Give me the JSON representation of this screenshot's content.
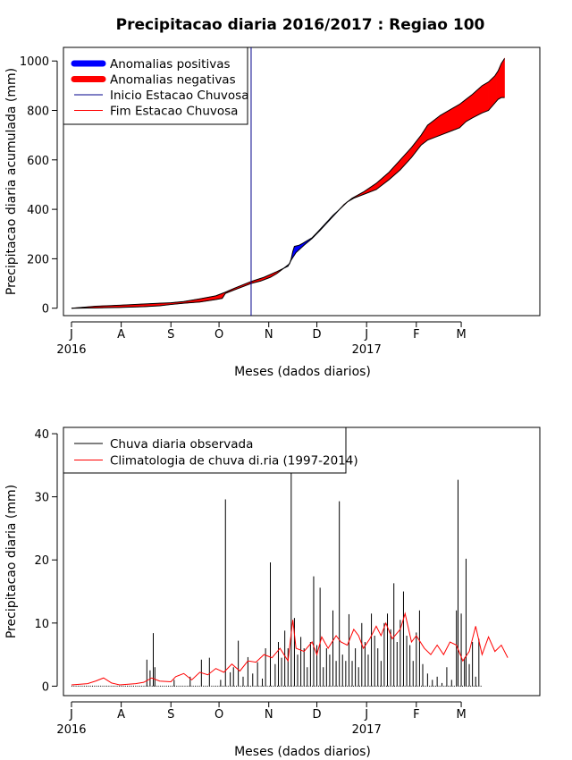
{
  "chart_data": [
    {
      "type": "area",
      "title": "Precipitacao diaria 2016/2017 : Regiao 100",
      "xlabel": "Meses (dados diarios)",
      "ylabel": "Precipitacao diaria acumulada (mm)",
      "x_unit": "days since 2016-07-01",
      "xlim": [
        -5,
        292
      ],
      "ylim": [
        -30,
        1055
      ],
      "y_ticks": [
        0,
        200,
        400,
        600,
        800,
        1000
      ],
      "x_ticks": [
        {
          "day": 0,
          "label": "J"
        },
        {
          "day": 31,
          "label": "A"
        },
        {
          "day": 62,
          "label": "S"
        },
        {
          "day": 92,
          "label": "O"
        },
        {
          "day": 123,
          "label": "N"
        },
        {
          "day": 153,
          "label": "D"
        },
        {
          "day": 184,
          "label": "J"
        },
        {
          "day": 215,
          "label": "F"
        },
        {
          "day": 243,
          "label": "M"
        }
      ],
      "year_labels": [
        {
          "day": 0,
          "label": "2016"
        },
        {
          "day": 184,
          "label": "2017"
        }
      ],
      "rainy_season_start_day": 112,
      "series": [
        {
          "name": "observed_cumulative",
          "points": [
            [
              0,
              0
            ],
            [
              15,
              1
            ],
            [
              30,
              3
            ],
            [
              45,
              6
            ],
            [
              55,
              10
            ],
            [
              62,
              15
            ],
            [
              70,
              20
            ],
            [
              80,
              25
            ],
            [
              90,
              35
            ],
            [
              94,
              40
            ],
            [
              96,
              60
            ],
            [
              102,
              75
            ],
            [
              112,
              100
            ],
            [
              118,
              110
            ],
            [
              124,
              125
            ],
            [
              128,
              140
            ],
            [
              132,
              160
            ],
            [
              136,
              180
            ],
            [
              137,
              200
            ],
            [
              138,
              230
            ],
            [
              139,
              250
            ],
            [
              142,
              255
            ],
            [
              144,
              262
            ],
            [
              150,
              285
            ],
            [
              153,
              305
            ],
            [
              158,
              340
            ],
            [
              163,
              375
            ],
            [
              168,
              405
            ],
            [
              172,
              430
            ],
            [
              176,
              445
            ],
            [
              182,
              460
            ],
            [
              190,
              480
            ],
            [
              198,
              520
            ],
            [
              205,
              560
            ],
            [
              212,
              610
            ],
            [
              218,
              660
            ],
            [
              222,
              680
            ],
            [
              230,
              700
            ],
            [
              238,
              720
            ],
            [
              242,
              730
            ],
            [
              246,
              755
            ],
            [
              250,
              770
            ],
            [
              256,
              790
            ],
            [
              260,
              800
            ],
            [
              264,
              830
            ],
            [
              266,
              845
            ],
            [
              268,
              852
            ],
            [
              270,
              852
            ]
          ]
        },
        {
          "name": "climatology_cumulative",
          "points": [
            [
              0,
              0
            ],
            [
              15,
              8
            ],
            [
              30,
              12
            ],
            [
              45,
              17
            ],
            [
              55,
              20
            ],
            [
              62,
              22
            ],
            [
              70,
              27
            ],
            [
              80,
              38
            ],
            [
              90,
              50
            ],
            [
              96,
              65
            ],
            [
              102,
              82
            ],
            [
              112,
              108
            ],
            [
              120,
              125
            ],
            [
              128,
              148
            ],
            [
              135,
              170
            ],
            [
              137,
              195
            ],
            [
              140,
              225
            ],
            [
              145,
              255
            ],
            [
              150,
              282
            ],
            [
              155,
              315
            ],
            [
              160,
              350
            ],
            [
              165,
              385
            ],
            [
              170,
              420
            ],
            [
              175,
              445
            ],
            [
              182,
              470
            ],
            [
              190,
              505
            ],
            [
              198,
              550
            ],
            [
              205,
              600
            ],
            [
              212,
              650
            ],
            [
              218,
              700
            ],
            [
              222,
              740
            ],
            [
              230,
              780
            ],
            [
              238,
              810
            ],
            [
              242,
              825
            ],
            [
              246,
              845
            ],
            [
              250,
              865
            ],
            [
              256,
              900
            ],
            [
              260,
              915
            ],
            [
              264,
              940
            ],
            [
              266,
              960
            ],
            [
              268,
              990
            ],
            [
              270,
              1010
            ]
          ]
        }
      ],
      "legend": {
        "position": "top-left",
        "items": [
          {
            "label": "Anomalias positivas",
            "color": "#0000ff",
            "style": "thick"
          },
          {
            "label": "Anomalias negativas",
            "color": "#ff0000",
            "style": "thick"
          },
          {
            "label": "Inicio Estacao Chuvosa",
            "color": "#00008b",
            "style": "line"
          },
          {
            "label": "Fim Estacao Chuvosa",
            "color": "#ff0000",
            "style": "line"
          }
        ]
      },
      "colors": {
        "positive": "#0000ff",
        "negative": "#ff0000",
        "season_start": "#00008b"
      }
    },
    {
      "type": "bar",
      "xlabel": "Meses (dados diarios)",
      "ylabel": "Precipitacao diaria (mm)",
      "x_unit": "days since 2016-07-01",
      "xlim": [
        -5,
        292
      ],
      "ylim": [
        -1.5,
        41
      ],
      "y_ticks": [
        0,
        10,
        20,
        30,
        40
      ],
      "x_ticks": [
        {
          "day": 0,
          "label": "J"
        },
        {
          "day": 31,
          "label": "A"
        },
        {
          "day": 62,
          "label": "S"
        },
        {
          "day": 92,
          "label": "O"
        },
        {
          "day": 123,
          "label": "N"
        },
        {
          "day": 153,
          "label": "D"
        },
        {
          "day": 184,
          "label": "J"
        },
        {
          "day": 215,
          "label": "F"
        },
        {
          "day": 243,
          "label": "M"
        }
      ],
      "year_labels": [
        {
          "day": 0,
          "label": "2016"
        },
        {
          "day": 184,
          "label": "2017"
        }
      ],
      "observed_bars": [
        [
          47,
          4.2
        ],
        [
          49,
          2.5
        ],
        [
          51,
          8.4
        ],
        [
          52,
          3.0
        ],
        [
          64,
          1.0
        ],
        [
          74,
          1.5
        ],
        [
          81,
          4.2
        ],
        [
          86,
          4.5
        ],
        [
          93,
          1.0
        ],
        [
          96,
          29.6
        ],
        [
          99,
          2.2
        ],
        [
          101,
          3.0
        ],
        [
          104,
          7.2
        ],
        [
          107,
          1.5
        ],
        [
          110,
          4.6
        ],
        [
          113,
          2.0
        ],
        [
          116,
          3.8
        ],
        [
          119,
          1.2
        ],
        [
          121,
          6.0
        ],
        [
          124,
          19.6
        ],
        [
          127,
          3.5
        ],
        [
          129,
          7.0
        ],
        [
          131,
          4.5
        ],
        [
          133,
          8.8
        ],
        [
          135,
          6.0
        ],
        [
          137,
          34.0
        ],
        [
          139,
          10.8
        ],
        [
          141,
          5.0
        ],
        [
          143,
          7.8
        ],
        [
          145,
          6.0
        ],
        [
          147,
          3.0
        ],
        [
          149,
          7.0
        ],
        [
          151,
          17.4
        ],
        [
          153,
          6.5
        ],
        [
          155,
          15.6
        ],
        [
          157,
          3.0
        ],
        [
          159,
          6.0
        ],
        [
          161,
          5.0
        ],
        [
          163,
          12.0
        ],
        [
          165,
          4.0
        ],
        [
          167,
          29.3
        ],
        [
          169,
          5.0
        ],
        [
          171,
          4.0
        ],
        [
          173,
          11.4
        ],
        [
          175,
          4.0
        ],
        [
          177,
          6.0
        ],
        [
          179,
          3.0
        ],
        [
          181,
          10.0
        ],
        [
          183,
          7.0
        ],
        [
          185,
          5.0
        ],
        [
          187,
          11.5
        ],
        [
          189,
          8.0
        ],
        [
          191,
          6.0
        ],
        [
          193,
          4.0
        ],
        [
          195,
          10.0
        ],
        [
          197,
          11.5
        ],
        [
          199,
          9.0
        ],
        [
          201,
          16.3
        ],
        [
          203,
          7.0
        ],
        [
          205,
          10.5
        ],
        [
          207,
          15.0
        ],
        [
          209,
          8.0
        ],
        [
          211,
          6.5
        ],
        [
          213,
          4.0
        ],
        [
          215,
          8.5
        ],
        [
          217,
          12.0
        ],
        [
          219,
          3.5
        ],
        [
          222,
          2.0
        ],
        [
          225,
          1.0
        ],
        [
          228,
          1.5
        ],
        [
          231,
          0.5
        ],
        [
          234,
          3.0
        ],
        [
          237,
          1.0
        ],
        [
          240,
          12.0
        ],
        [
          241,
          32.7
        ],
        [
          243,
          11.5
        ],
        [
          245,
          4.5
        ],
        [
          246,
          20.2
        ],
        [
          248,
          3.5
        ],
        [
          250,
          7.0
        ],
        [
          252,
          1.5
        ],
        [
          254,
          7.5
        ]
      ],
      "climatology_line": [
        [
          0,
          0.2
        ],
        [
          10,
          0.4
        ],
        [
          15,
          0.8
        ],
        [
          20,
          1.3
        ],
        [
          25,
          0.5
        ],
        [
          30,
          0.2
        ],
        [
          40,
          0.4
        ],
        [
          45,
          0.6
        ],
        [
          50,
          1.3
        ],
        [
          55,
          0.8
        ],
        [
          62,
          0.7
        ],
        [
          65,
          1.5
        ],
        [
          70,
          2.0
        ],
        [
          75,
          1.0
        ],
        [
          80,
          2.2
        ],
        [
          85,
          1.8
        ],
        [
          90,
          2.8
        ],
        [
          95,
          2.2
        ],
        [
          100,
          3.5
        ],
        [
          105,
          2.4
        ],
        [
          110,
          4.0
        ],
        [
          115,
          3.8
        ],
        [
          120,
          5.0
        ],
        [
          125,
          4.5
        ],
        [
          130,
          6.0
        ],
        [
          135,
          4.0
        ],
        [
          138,
          10.5
        ],
        [
          140,
          6.0
        ],
        [
          145,
          5.5
        ],
        [
          150,
          7.0
        ],
        [
          153,
          5.0
        ],
        [
          156,
          7.8
        ],
        [
          160,
          6.0
        ],
        [
          165,
          8.0
        ],
        [
          168,
          7.0
        ],
        [
          172,
          6.5
        ],
        [
          176,
          9.0
        ],
        [
          179,
          8.0
        ],
        [
          182,
          6.0
        ],
        [
          186,
          7.5
        ],
        [
          190,
          9.5
        ],
        [
          193,
          8.0
        ],
        [
          196,
          10.0
        ],
        [
          200,
          7.5
        ],
        [
          205,
          9.0
        ],
        [
          208,
          11.5
        ],
        [
          212,
          7.0
        ],
        [
          215,
          8.0
        ],
        [
          220,
          6.0
        ],
        [
          224,
          5.0
        ],
        [
          228,
          6.5
        ],
        [
          232,
          5.0
        ],
        [
          236,
          7.0
        ],
        [
          240,
          6.5
        ],
        [
          244,
          4.0
        ],
        [
          248,
          5.5
        ],
        [
          252,
          9.5
        ],
        [
          256,
          5.0
        ],
        [
          260,
          7.8
        ],
        [
          264,
          5.5
        ],
        [
          268,
          6.5
        ],
        [
          272,
          4.5
        ]
      ],
      "legend": {
        "position": "top-left",
        "items": [
          {
            "label": "Chuva diaria observada",
            "color": "#000000",
            "style": "line"
          },
          {
            "label": "Climatologia de chuva di.ria (1997-2014)",
            "color": "#ff0000",
            "style": "line"
          }
        ]
      },
      "colors": {
        "observed": "#000000",
        "climatology": "#ff0000"
      }
    }
  ]
}
